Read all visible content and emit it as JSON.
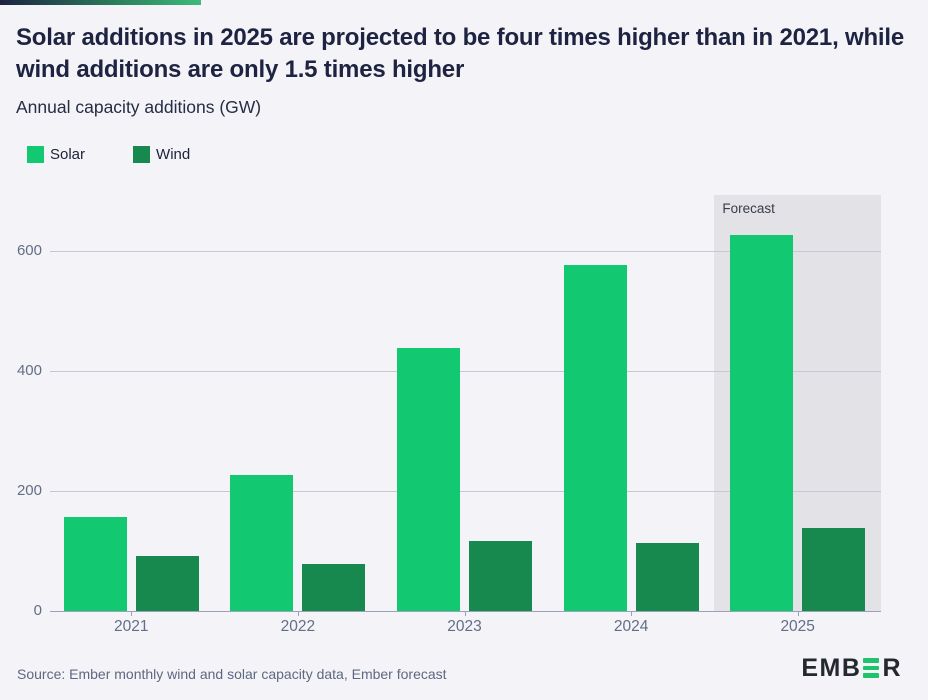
{
  "header": {
    "title": "Solar additions in 2025 are projected to be four times higher than in 2021, while wind additions are only 1.5 times higher",
    "subtitle": "Annual capacity additions (GW)"
  },
  "legend": {
    "items": [
      {
        "label": "Solar",
        "color": "#12c972"
      },
      {
        "label": "Wind",
        "color": "#17894f"
      }
    ]
  },
  "chart_data": {
    "type": "bar",
    "categories": [
      "2021",
      "2022",
      "2023",
      "2024",
      "2025"
    ],
    "series": [
      {
        "name": "Solar",
        "color": "#12c972",
        "values": [
          157,
          226,
          438,
          576,
          627
        ]
      },
      {
        "name": "Wind",
        "color": "#17894f",
        "values": [
          91,
          78,
          117,
          113,
          138
        ]
      }
    ],
    "title": "Solar additions in 2025 are projected to be four times higher than in 2021, while wind additions are only 1.5 times higher",
    "xlabel": "",
    "ylabel": "Annual capacity additions (GW)",
    "ylim": [
      0,
      693
    ],
    "yticks": [
      0,
      200,
      400,
      600
    ],
    "grid": true,
    "legend_position": "top-left",
    "annotations": [
      {
        "label": "Forecast",
        "category": "2025",
        "region_color": "#e2e2e7"
      }
    ]
  },
  "footer": {
    "source": "Source: Ember monthly wind and solar capacity data, Ember forecast",
    "logo_prefix": "EMB",
    "logo_suffix": "R",
    "logo_bars_icon": "ember-three-bars",
    "logo_bar_color": "#1fc36c"
  },
  "colors": {
    "background": "#f4f4f8",
    "title_text": "#1d2340",
    "axis_text": "#636d87",
    "gridline": "#c4c9d5",
    "accent_gradient_start": "#1c2342",
    "accent_gradient_end": "#3cbb78"
  }
}
